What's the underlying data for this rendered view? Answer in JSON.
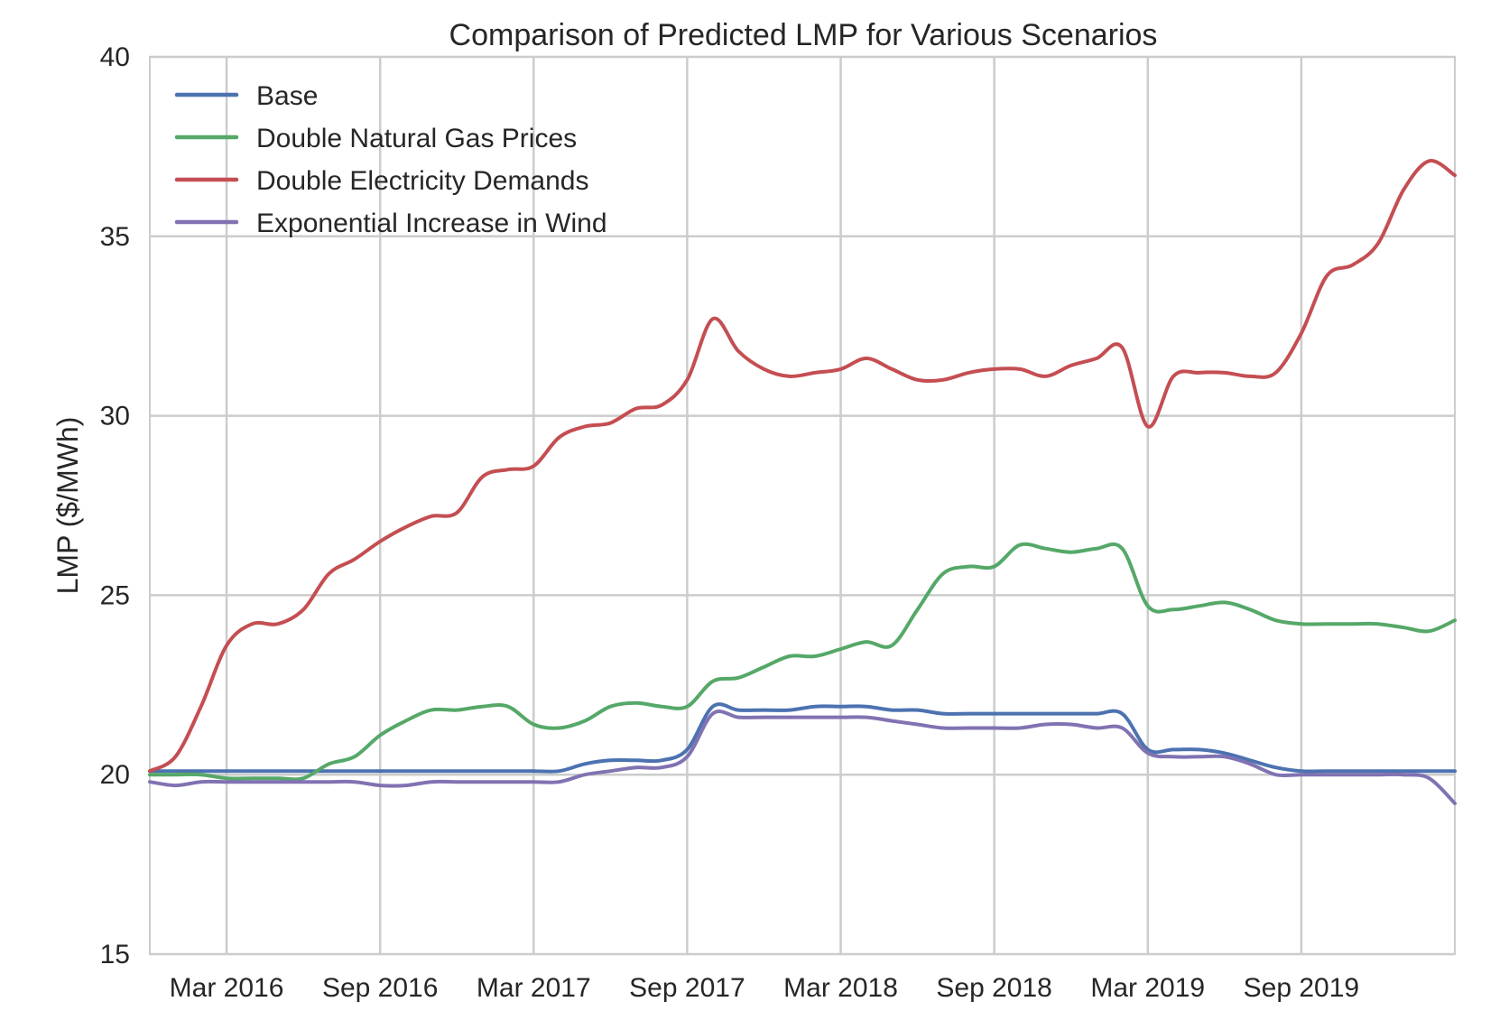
{
  "chart_data": {
    "type": "line",
    "title": "Comparison of Predicted LMP for Various Scenarios",
    "xlabel": "",
    "ylabel": "LMP ($/MWh)",
    "ylim": [
      15,
      40
    ],
    "y_ticks": [
      15,
      20,
      25,
      30,
      35,
      40
    ],
    "xlim": [
      "2015-12",
      "2020-03"
    ],
    "x_ticks": [
      {
        "date": "2016-03",
        "label": "Mar 2016"
      },
      {
        "date": "2016-09",
        "label": "Sep 2016"
      },
      {
        "date": "2017-03",
        "label": "Mar 2017"
      },
      {
        "date": "2017-09",
        "label": "Sep 2017"
      },
      {
        "date": "2018-03",
        "label": "Mar 2018"
      },
      {
        "date": "2018-09",
        "label": "Sep 2018"
      },
      {
        "date": "2019-03",
        "label": "Mar 2019"
      },
      {
        "date": "2019-09",
        "label": "Sep 2019"
      }
    ],
    "grid": true,
    "legend_position": "top-left",
    "x": [
      "2015-12",
      "2016-01",
      "2016-02",
      "2016-03",
      "2016-04",
      "2016-05",
      "2016-06",
      "2016-07",
      "2016-08",
      "2016-09",
      "2016-10",
      "2016-11",
      "2016-12",
      "2017-01",
      "2017-02",
      "2017-03",
      "2017-04",
      "2017-05",
      "2017-06",
      "2017-07",
      "2017-08",
      "2017-09",
      "2017-10",
      "2017-11",
      "2017-12",
      "2018-01",
      "2018-02",
      "2018-03",
      "2018-04",
      "2018-05",
      "2018-06",
      "2018-07",
      "2018-08",
      "2018-09",
      "2018-10",
      "2018-11",
      "2018-12",
      "2019-01",
      "2019-02",
      "2019-03",
      "2019-04",
      "2019-05",
      "2019-06",
      "2019-07",
      "2019-08",
      "2019-09",
      "2019-10",
      "2019-11",
      "2019-12",
      "2020-01",
      "2020-02",
      "2020-03"
    ],
    "series": [
      {
        "name": "Base",
        "color": "#4c72b0",
        "values": [
          20.1,
          20.1,
          20.1,
          20.1,
          20.1,
          20.1,
          20.1,
          20.1,
          20.1,
          20.1,
          20.1,
          20.1,
          20.1,
          20.1,
          20.1,
          20.1,
          20.1,
          20.3,
          20.4,
          20.4,
          20.4,
          20.7,
          21.9,
          21.8,
          21.8,
          21.8,
          21.9,
          21.9,
          21.9,
          21.8,
          21.8,
          21.7,
          21.7,
          21.7,
          21.7,
          21.7,
          21.7,
          21.7,
          21.7,
          20.7,
          20.7,
          20.7,
          20.6,
          20.4,
          20.2,
          20.1,
          20.1,
          20.1,
          20.1,
          20.1,
          20.1,
          20.1
        ]
      },
      {
        "name": "Double Natural Gas Prices",
        "color": "#55a868",
        "values": [
          20.0,
          20.0,
          20.0,
          19.9,
          19.9,
          19.9,
          19.9,
          20.3,
          20.5,
          21.1,
          21.5,
          21.8,
          21.8,
          21.9,
          21.9,
          21.4,
          21.3,
          21.5,
          21.9,
          22.0,
          21.9,
          21.9,
          22.6,
          22.7,
          23.0,
          23.3,
          23.3,
          23.5,
          23.7,
          23.6,
          24.6,
          25.6,
          25.8,
          25.8,
          26.4,
          26.3,
          26.2,
          26.3,
          26.3,
          24.7,
          24.6,
          24.7,
          24.8,
          24.6,
          24.3,
          24.2,
          24.2,
          24.2,
          24.2,
          24.1,
          24.0,
          24.3
        ]
      },
      {
        "name": "Double Electricity Demands",
        "color": "#c44e52",
        "values": [
          20.1,
          20.5,
          21.9,
          23.6,
          24.2,
          24.2,
          24.6,
          25.6,
          26.0,
          26.5,
          26.9,
          27.2,
          27.3,
          28.3,
          28.5,
          28.6,
          29.4,
          29.7,
          29.8,
          30.2,
          30.3,
          31.0,
          32.7,
          31.8,
          31.3,
          31.1,
          31.2,
          31.3,
          31.6,
          31.3,
          31.0,
          31.0,
          31.2,
          31.3,
          31.3,
          31.1,
          31.4,
          31.6,
          31.9,
          29.7,
          31.1,
          31.2,
          31.2,
          31.1,
          31.2,
          32.3,
          33.9,
          34.2,
          34.8,
          36.3,
          37.1,
          36.7
        ]
      },
      {
        "name": "Exponential Increase in Wind",
        "color": "#8172b2",
        "values": [
          19.8,
          19.7,
          19.8,
          19.8,
          19.8,
          19.8,
          19.8,
          19.8,
          19.8,
          19.7,
          19.7,
          19.8,
          19.8,
          19.8,
          19.8,
          19.8,
          19.8,
          20.0,
          20.1,
          20.2,
          20.2,
          20.5,
          21.7,
          21.6,
          21.6,
          21.6,
          21.6,
          21.6,
          21.6,
          21.5,
          21.4,
          21.3,
          21.3,
          21.3,
          21.3,
          21.4,
          21.4,
          21.3,
          21.3,
          20.6,
          20.5,
          20.5,
          20.5,
          20.3,
          20.0,
          20.0,
          20.0,
          20.0,
          20.0,
          20.0,
          19.9,
          19.2
        ]
      }
    ]
  }
}
